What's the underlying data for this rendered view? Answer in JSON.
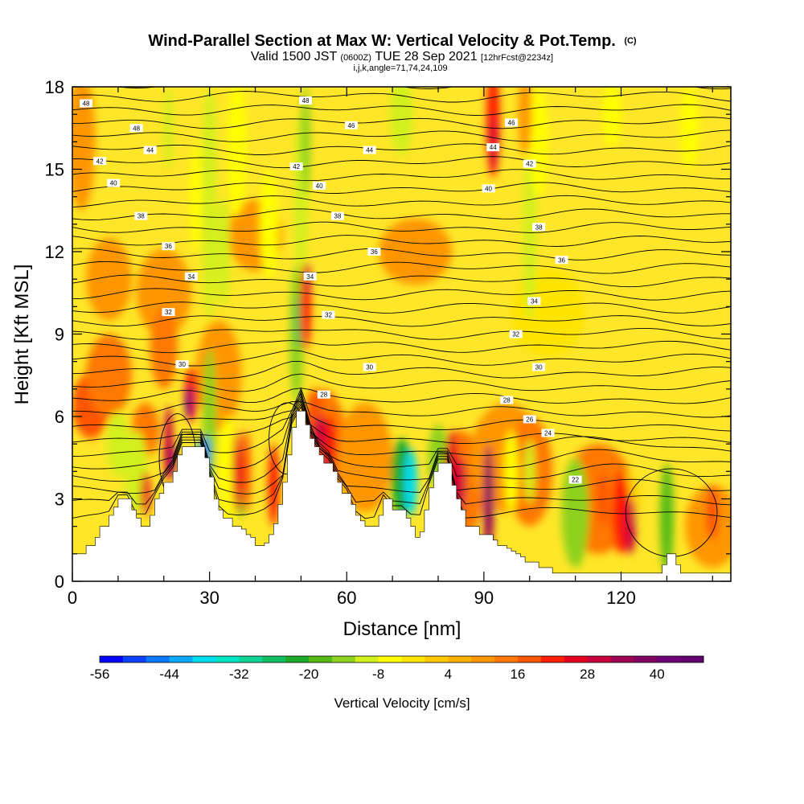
{
  "chart_data": {
    "type": "heatmap",
    "title": "Wind-Parallel Section at Max W: Vertical Velocity & Pot.Temp.",
    "title_mark": "(C)",
    "subtitle_parts": [
      "Valid 1500 JST ",
      "(0600Z)",
      " TUE 28 Sep 2021 ",
      "[12hrFcst@2234z]"
    ],
    "subtitle2": "i,j,k,angle=71,74,24,109",
    "xlabel": "Distance [nm]",
    "ylabel": "Height [Kft MSL]",
    "xlim": [
      0,
      144
    ],
    "ylim": [
      0,
      18
    ],
    "xticks": [
      0,
      30,
      60,
      90,
      120
    ],
    "yticks": [
      0,
      3,
      6,
      9,
      12,
      15,
      18
    ],
    "colorbar": {
      "label": "Vertical Velocity [cm/s]",
      "tick_values": [
        -56,
        -44,
        -32,
        -20,
        -8,
        4,
        16,
        28,
        40
      ],
      "range": [
        -56,
        48
      ],
      "step": 4,
      "colors": [
        "#0000ff",
        "#0a40ff",
        "#0a78ff",
        "#0aa8ff",
        "#00ddee",
        "#00e6c4",
        "#10d496",
        "#10c060",
        "#1caa28",
        "#55bb14",
        "#8cd21e",
        "#d2f01e",
        "#ffff00",
        "#ffe400",
        "#ffc800",
        "#ffb000",
        "#ff9600",
        "#ff7800",
        "#ff5500",
        "#ff1e00",
        "#e6001e",
        "#c8003c",
        "#a00050",
        "#820064",
        "#6e0078",
        "#64006e"
      ]
    },
    "terrain_kft": [
      [
        0,
        1.0
      ],
      [
        2,
        1.0
      ],
      [
        3,
        1.3
      ],
      [
        5,
        1.6
      ],
      [
        6,
        2.0
      ],
      [
        8,
        2.4
      ],
      [
        9,
        2.7
      ],
      [
        10,
        3.0
      ],
      [
        12,
        3.0
      ],
      [
        13,
        2.6
      ],
      [
        14,
        2.3
      ],
      [
        15,
        2.0
      ],
      [
        16,
        2.0
      ],
      [
        17,
        2.4
      ],
      [
        18,
        3.0
      ],
      [
        19,
        3.2
      ],
      [
        20,
        3.6
      ],
      [
        22,
        4.0
      ],
      [
        23,
        4.6
      ],
      [
        24,
        4.9
      ],
      [
        26,
        4.9
      ],
      [
        28,
        4.9
      ],
      [
        29,
        4.5
      ],
      [
        30,
        3.8
      ],
      [
        31,
        3.0
      ],
      [
        32,
        2.6
      ],
      [
        33,
        2.3
      ],
      [
        34,
        2.3
      ],
      [
        35,
        2.0
      ],
      [
        37,
        1.9
      ],
      [
        38,
        1.7
      ],
      [
        39,
        1.6
      ],
      [
        40,
        1.3
      ],
      [
        42,
        1.4
      ],
      [
        43,
        1.7
      ],
      [
        44,
        2.1
      ],
      [
        45,
        2.8
      ],
      [
        46,
        3.6
      ],
      [
        47,
        4.6
      ],
      [
        48,
        5.6
      ],
      [
        49,
        6.2
      ],
      [
        50,
        6.2
      ],
      [
        51,
        5.7
      ],
      [
        52,
        5.2
      ],
      [
        53,
        4.9
      ],
      [
        54,
        4.6
      ],
      [
        55,
        4.3
      ],
      [
        57,
        4.0
      ],
      [
        58,
        3.6
      ],
      [
        59,
        3.2
      ],
      [
        61,
        2.8
      ],
      [
        62,
        2.4
      ],
      [
        63,
        2.2
      ],
      [
        64,
        2.0
      ],
      [
        66,
        2.0
      ],
      [
        67,
        2.4
      ],
      [
        68,
        3.0
      ],
      [
        69,
        3.0
      ],
      [
        70,
        2.6
      ],
      [
        72,
        2.6
      ],
      [
        73,
        2.3
      ],
      [
        74,
        2.0
      ],
      [
        75,
        1.6
      ],
      [
        76,
        1.8
      ],
      [
        77,
        2.6
      ],
      [
        78,
        3.4
      ],
      [
        79,
        4.0
      ],
      [
        80,
        4.3
      ],
      [
        82,
        4.3
      ],
      [
        83,
        3.5
      ],
      [
        84,
        3.0
      ],
      [
        85,
        2.6
      ],
      [
        86,
        2.0
      ],
      [
        88,
        2.0
      ],
      [
        89,
        1.7
      ],
      [
        91,
        1.7
      ],
      [
        92,
        1.5
      ],
      [
        93,
        1.3
      ],
      [
        95,
        1.2
      ],
      [
        96,
        1.1
      ],
      [
        97,
        1.0
      ],
      [
        98,
        0.9
      ],
      [
        99,
        0.7
      ],
      [
        101,
        0.7
      ],
      [
        102,
        0.5
      ],
      [
        104,
        0.5
      ],
      [
        105,
        0.3
      ],
      [
        128,
        0.3
      ],
      [
        129,
        0.6
      ],
      [
        130,
        1.0
      ],
      [
        131,
        1.0
      ],
      [
        132,
        0.6
      ],
      [
        133,
        0.3
      ],
      [
        144,
        0.3
      ]
    ],
    "theta_labels": [
      {
        "text": "48",
        "x": 3,
        "y": 17.4
      },
      {
        "text": "48",
        "x": 14,
        "y": 16.5
      },
      {
        "text": "44",
        "x": 17,
        "y": 15.7
      },
      {
        "text": "42",
        "x": 6,
        "y": 15.3
      },
      {
        "text": "40",
        "x": 9,
        "y": 14.5
      },
      {
        "text": "38",
        "x": 15,
        "y": 13.3
      },
      {
        "text": "36",
        "x": 21,
        "y": 12.2
      },
      {
        "text": "34",
        "x": 26,
        "y": 11.1
      },
      {
        "text": "32",
        "x": 21,
        "y": 9.8
      },
      {
        "text": "30",
        "x": 24,
        "y": 7.9
      },
      {
        "text": "48",
        "x": 51,
        "y": 17.5
      },
      {
        "text": "46",
        "x": 61,
        "y": 16.6
      },
      {
        "text": "44",
        "x": 65,
        "y": 15.7
      },
      {
        "text": "42",
        "x": 49,
        "y": 15.1
      },
      {
        "text": "40",
        "x": 54,
        "y": 14.4
      },
      {
        "text": "38",
        "x": 58,
        "y": 13.3
      },
      {
        "text": "36",
        "x": 66,
        "y": 12.0
      },
      {
        "text": "34",
        "x": 52,
        "y": 11.1
      },
      {
        "text": "32",
        "x": 56,
        "y": 9.7
      },
      {
        "text": "30",
        "x": 65,
        "y": 7.8
      },
      {
        "text": "28",
        "x": 55,
        "y": 6.8
      },
      {
        "text": "46",
        "x": 96,
        "y": 16.7
      },
      {
        "text": "44",
        "x": 92,
        "y": 15.8
      },
      {
        "text": "42",
        "x": 100,
        "y": 15.2
      },
      {
        "text": "40",
        "x": 91,
        "y": 14.3
      },
      {
        "text": "38",
        "x": 102,
        "y": 12.9
      },
      {
        "text": "36",
        "x": 107,
        "y": 11.7
      },
      {
        "text": "34",
        "x": 101,
        "y": 10.2
      },
      {
        "text": "32",
        "x": 97,
        "y": 9.0
      },
      {
        "text": "30",
        "x": 102,
        "y": 7.8
      },
      {
        "text": "28",
        "x": 95,
        "y": 6.6
      },
      {
        "text": "26",
        "x": 100,
        "y": 5.9
      },
      {
        "text": "24",
        "x": 104,
        "y": 5.4
      },
      {
        "text": "22",
        "x": 110,
        "y": 3.7
      }
    ],
    "theta_contour_levels": [
      22,
      24,
      26,
      28,
      30,
      32,
      34,
      36,
      38,
      40,
      42,
      44,
      46,
      48
    ]
  }
}
